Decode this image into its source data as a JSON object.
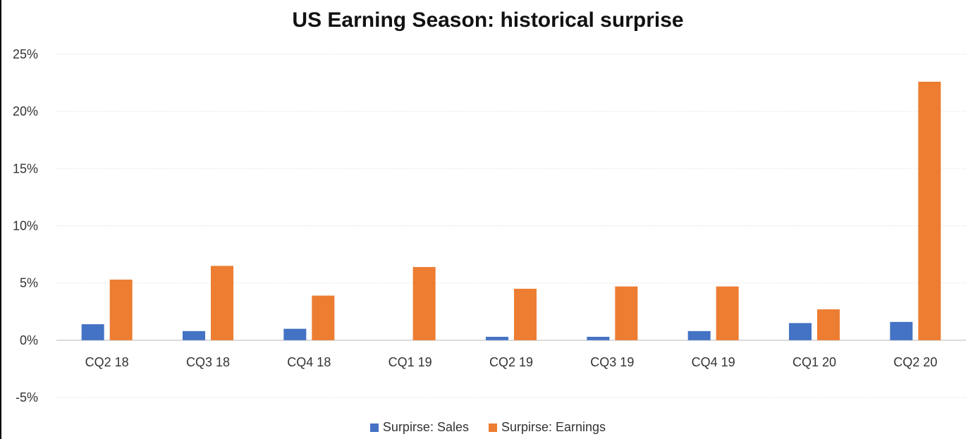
{
  "chart_data": {
    "type": "bar",
    "title": "US Earning Season: historical surprise",
    "categories": [
      "CQ2 18",
      "CQ3 18",
      "CQ4 18",
      "CQ1 19",
      "CQ2 19",
      "CQ3 19",
      "CQ4 19",
      "CQ1 20",
      "CQ2 20"
    ],
    "series": [
      {
        "name": "Surpirse: Sales",
        "color": "#4472C4",
        "values": [
          1.4,
          0.8,
          1.0,
          0.0,
          0.3,
          0.3,
          0.8,
          1.5,
          1.6
        ]
      },
      {
        "name": "Surpirse: Earnings",
        "color": "#ED7D31",
        "values": [
          5.3,
          6.5,
          3.9,
          6.4,
          4.5,
          4.7,
          4.7,
          2.7,
          22.6
        ]
      }
    ],
    "ylim": [
      -5,
      25
    ],
    "yticks": [
      "25%",
      "20%",
      "15%",
      "10%",
      "5%",
      "0%",
      "-5%"
    ],
    "ytick_values": [
      25,
      20,
      15,
      10,
      5,
      0,
      -5
    ],
    "xlabel": "",
    "ylabel": "",
    "grid": true,
    "legend_position": "bottom"
  }
}
